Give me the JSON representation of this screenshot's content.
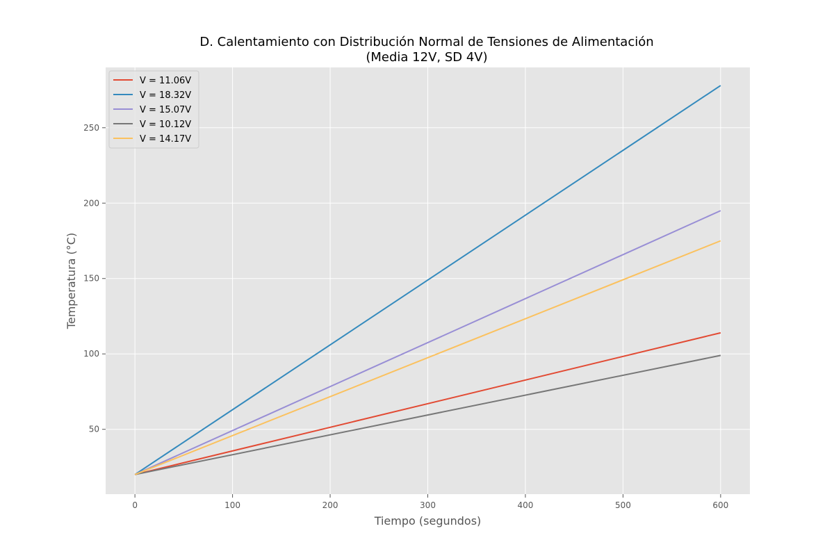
{
  "chart_data": {
    "type": "line",
    "title": [
      "D. Calentamiento con Distribución Normal de Tensiones de Alimentación",
      "(Media 12V, SD 4V)"
    ],
    "xlabel": "Tiempo (segundos)",
    "ylabel": "Temperatura (°C)",
    "xlim": [
      -30,
      630
    ],
    "ylim": [
      7,
      290
    ],
    "xticks": [
      0,
      100,
      200,
      300,
      400,
      500,
      600
    ],
    "yticks": [
      50,
      100,
      150,
      200,
      250
    ],
    "grid": true,
    "legend_position": "top-left",
    "colors": {
      "plot_background": "#e5e5e5",
      "grid": "#ffffff"
    },
    "series": [
      {
        "name": "V = 11.06V",
        "color": "#e24a33",
        "x": [
          0,
          600
        ],
        "y": [
          20,
          114
        ]
      },
      {
        "name": "V = 18.32V",
        "color": "#348abd",
        "x": [
          0,
          600
        ],
        "y": [
          20,
          278
        ]
      },
      {
        "name": "V = 15.07V",
        "color": "#988ed5",
        "x": [
          0,
          600
        ],
        "y": [
          20,
          195
        ]
      },
      {
        "name": "V = 10.12V",
        "color": "#777777",
        "x": [
          0,
          600
        ],
        "y": [
          20,
          99
        ]
      },
      {
        "name": "V = 14.17V",
        "color": "#fbc15e",
        "x": [
          0,
          600
        ],
        "y": [
          20,
          175
        ]
      }
    ]
  }
}
